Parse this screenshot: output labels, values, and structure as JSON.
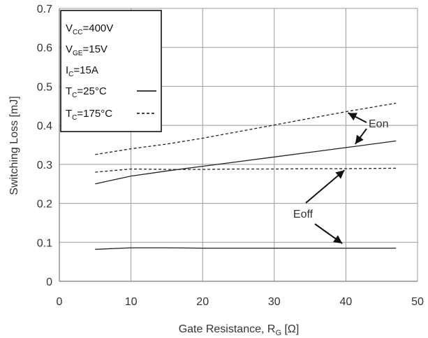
{
  "chart_data": {
    "type": "line",
    "xlabel": "Gate Resistance, R",
    "xlabel_sub": "G",
    "xlabel_unit": " [Ω]",
    "ylabel": "Switching Loss [mJ]",
    "xlim": [
      0,
      50
    ],
    "ylim": [
      0,
      0.7
    ],
    "xticks": [
      "0",
      "10",
      "20",
      "30",
      "40",
      "50"
    ],
    "yticks": [
      "0",
      "0.1",
      "0.2",
      "0.3",
      "0.4",
      "0.5",
      "0.6",
      "0.7"
    ],
    "grid": true,
    "series": [
      {
        "name": "Eon",
        "condition": "TC=25°C",
        "style": "solid",
        "x": [
          5,
          10,
          15,
          20,
          25,
          30,
          35,
          40,
          47
        ],
        "y": [
          0.25,
          0.27,
          0.283,
          0.295,
          0.307,
          0.319,
          0.331,
          0.343,
          0.36
        ]
      },
      {
        "name": "Eon",
        "condition": "TC=175°C",
        "style": "dashed",
        "x": [
          5,
          10,
          15,
          20,
          25,
          30,
          35,
          40,
          47
        ],
        "y": [
          0.325,
          0.34,
          0.352,
          0.367,
          0.384,
          0.401,
          0.418,
          0.435,
          0.457
        ]
      },
      {
        "name": "Eoff",
        "condition": "TC=25°C",
        "style": "solid",
        "x": [
          5,
          10,
          15,
          20,
          25,
          30,
          35,
          40,
          47
        ],
        "y": [
          0.082,
          0.086,
          0.086,
          0.085,
          0.085,
          0.085,
          0.085,
          0.085,
          0.085
        ]
      },
      {
        "name": "Eoff",
        "condition": "TC=175°C",
        "style": "dashed",
        "x": [
          5,
          10,
          15,
          20,
          25,
          30,
          35,
          40,
          47
        ],
        "y": [
          0.28,
          0.288,
          0.287,
          0.287,
          0.288,
          0.288,
          0.289,
          0.289,
          0.29
        ]
      }
    ],
    "legend": {
      "position": "top-left",
      "conditions": [
        {
          "main": "V",
          "sub": "CC",
          "rest": "=400V"
        },
        {
          "main": "V",
          "sub": "GE",
          "rest": "=15V"
        },
        {
          "main": "I",
          "sub": "C",
          "rest": "=15A"
        }
      ],
      "entries": [
        {
          "main": "T",
          "sub": "C",
          "rest": "=25°C",
          "style": "solid"
        },
        {
          "main": "T",
          "sub": "C",
          "rest": "=175°C",
          "style": "dashed"
        }
      ]
    },
    "annotations": [
      {
        "text": "Eon",
        "targets": [
          [
            40.3,
            0.432
          ],
          [
            41.3,
            0.352
          ]
        ]
      },
      {
        "text": "Eoff",
        "targets": [
          [
            39.8,
            0.285
          ],
          [
            39.5,
            0.097
          ]
        ]
      }
    ]
  }
}
